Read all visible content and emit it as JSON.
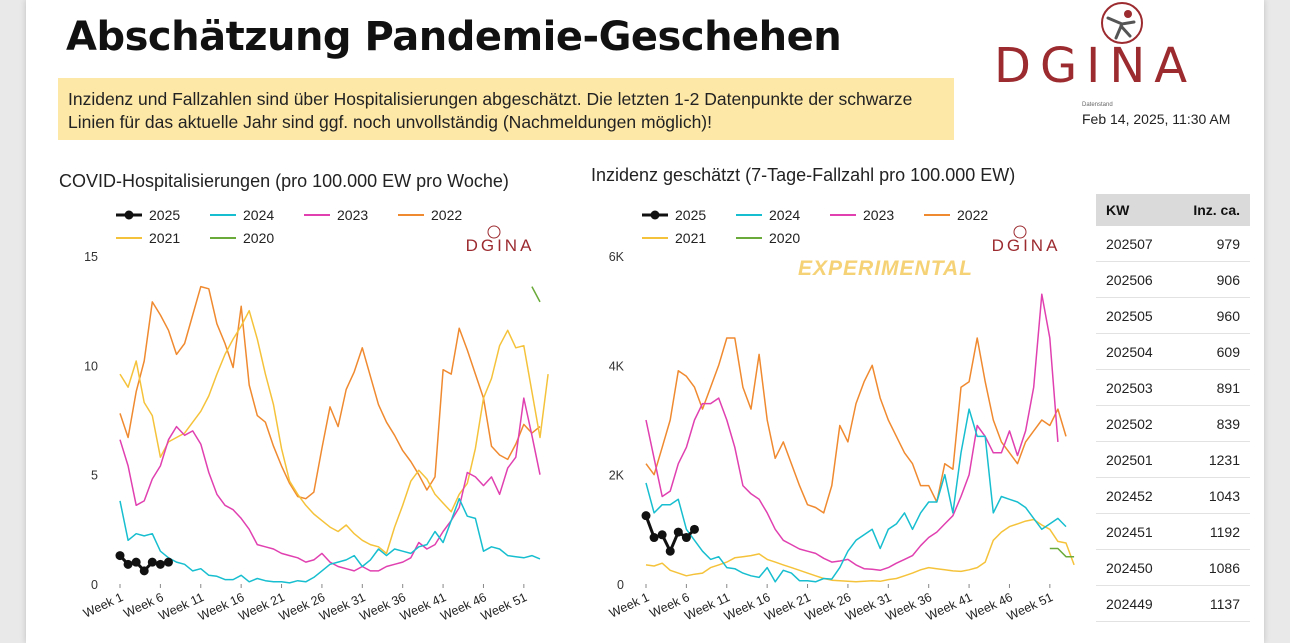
{
  "page": {
    "title": "Abschätzung Pandemie-Geschehen",
    "notice": "Inzidenz und Fallzahlen sind über Hospitalisierungen abgeschätzt. Die letzten 1-2 Datenpunkte der schwarze Linien für das aktuelle Jahr sind ggf. noch unvollständig (Nachmeldungen möglich)!",
    "logo_text": "DGINA",
    "datestand_label": "Datenstand",
    "datestand": "Feb 14, 2025, 11:30 AM"
  },
  "colors": {
    "2025": "#111111",
    "2024": "#17becf",
    "2023": "#e040b0",
    "2022": "#f08a30",
    "2021": "#f5c33b",
    "2020": "#6aaa3a",
    "brand": "#9c2b30"
  },
  "chart_data": [
    {
      "type": "line",
      "title": "COVID-Hospitalisierungen (pro 100.000 EW pro Woche)",
      "watermark": "DGINA",
      "experimental_label": "",
      "y_ticks": [
        0,
        5,
        10,
        15
      ],
      "y_tick_labels": [
        "0",
        "5",
        "10",
        "15"
      ],
      "ylim": [
        0,
        15
      ],
      "x_ticks": [
        1,
        6,
        11,
        16,
        21,
        26,
        31,
        36,
        41,
        46,
        51
      ],
      "x_tick_labels": [
        "Week 1",
        "Week 6",
        "Week 11",
        "Week 16",
        "Week 21",
        "Week 26",
        "Week 31",
        "Week 36",
        "Week 41",
        "Week 46",
        "Week 51"
      ],
      "xlim": [
        1,
        53
      ],
      "series": [
        {
          "name": "2022",
          "start_week": 1,
          "values": [
            7.8,
            6.7,
            8.8,
            10.2,
            12.9,
            12.3,
            11.6,
            10.5,
            11,
            12.3,
            13.6,
            13.5,
            11.9,
            11,
            9.9,
            12.7,
            9.1,
            7.7,
            7.4,
            6.3,
            5.4,
            4.6,
            4,
            3.9,
            4.2,
            6.2,
            8.1,
            7.2,
            8.9,
            9.7,
            10.8,
            9.5,
            8.2,
            7.4,
            6.8,
            6.1,
            5.6,
            5,
            4.3,
            4.9,
            9.8,
            9.6,
            11.7,
            10.7,
            9.6,
            8.5,
            6.3,
            5.9,
            5.7,
            6.4,
            7.3,
            6.9,
            7.2
          ]
        },
        {
          "name": "2021",
          "start_week": 1,
          "values": [
            9.6,
            9,
            10.2,
            8.3,
            7.7,
            5.8,
            6.5,
            6.7,
            6.9,
            7.4,
            7.9,
            8.6,
            9.6,
            10.5,
            11.2,
            11.8,
            12.5,
            11.2,
            9.6,
            8.2,
            6.2,
            4.7,
            4.1,
            3.6,
            3.2,
            2.9,
            2.6,
            2.4,
            2.7,
            2.3,
            2,
            1.8,
            1.7,
            1.4,
            2.6,
            3.6,
            4.7,
            5.2,
            4.8,
            4.1,
            3.7,
            3.3,
            4.1,
            4.6,
            6.2,
            8.5,
            9.4,
            10.9,
            11.6,
            10.8,
            10.9,
            8.8,
            6.7,
            9.6
          ]
        },
        {
          "name": "2023",
          "start_week": 1,
          "values": [
            6.6,
            5.4,
            3.6,
            3.8,
            4.8,
            5.4,
            6.6,
            7.2,
            6.8,
            7,
            6.4,
            5.1,
            4.1,
            3.6,
            3.4,
            3,
            2.5,
            1.8,
            1.7,
            1.6,
            1.4,
            1.3,
            1.2,
            1,
            1.1,
            1.4,
            1,
            0.8,
            0.7,
            0.6,
            0.8,
            0.6,
            0.6,
            0.8,
            0.9,
            1,
            1.2,
            1.9,
            1.6,
            1.8,
            2.4,
            2.9,
            3.5,
            5.1,
            4.9,
            4.5,
            4.9,
            4.1,
            5.3,
            5.8,
            8.5,
            6.8,
            5
          ]
        },
        {
          "name": "2024",
          "start_week": 1,
          "values": [
            3.8,
            2,
            2.3,
            2.2,
            2.3,
            1.5,
            1.2,
            1,
            0.9,
            0.6,
            0.7,
            0.4,
            0.35,
            0.2,
            0.2,
            0.4,
            0.1,
            0.25,
            0.15,
            0.1,
            0.1,
            0.05,
            0.15,
            0.1,
            0.3,
            0.6,
            0.9,
            1,
            1.1,
            1.3,
            0.8,
            1.1,
            1.6,
            1.3,
            1.6,
            1.5,
            1.4,
            1.7,
            1.8,
            2.4,
            1.9,
            2.9,
            3.9,
            3.1,
            3,
            1.5,
            1.7,
            1.6,
            1.3,
            1.25,
            1.2,
            1.3,
            1.15
          ]
        },
        {
          "name": "2020",
          "start_week": 52,
          "values": [
            13.6,
            12.9
          ]
        },
        {
          "name": "2025",
          "start_week": 1,
          "values": [
            1.3,
            0.9,
            1,
            0.6,
            1,
            0.9,
            1
          ]
        }
      ]
    },
    {
      "type": "line",
      "title": "Inzidenz geschätzt (7-Tage-Fallzahl pro 100.000 EW)",
      "watermark": "DGINA",
      "experimental_label": "EXPERIMENTAL",
      "y_ticks": [
        0,
        2000,
        4000,
        6000
      ],
      "y_tick_labels": [
        "0",
        "2K",
        "4K",
        "6K"
      ],
      "ylim": [
        0,
        6000
      ],
      "x_ticks": [
        1,
        6,
        11,
        16,
        21,
        26,
        31,
        36,
        41,
        46,
        51
      ],
      "x_tick_labels": [
        "Week 1",
        "Week 6",
        "Week 11",
        "Week 16",
        "Week 21",
        "Week 26",
        "Week 31",
        "Week 36",
        "Week 41",
        "Week 46",
        "Week 51"
      ],
      "xlim": [
        1,
        53
      ],
      "series": [
        {
          "name": "2022",
          "start_week": 1,
          "values": [
            2200,
            2000,
            2500,
            3000,
            3900,
            3800,
            3600,
            3200,
            3600,
            4000,
            4500,
            4500,
            3600,
            3200,
            4200,
            3000,
            2300,
            2600,
            2200,
            1800,
            1450,
            1400,
            1300,
            1800,
            2900,
            2600,
            3300,
            3700,
            4000,
            3400,
            3000,
            2700,
            2400,
            2200,
            1800,
            1800,
            1500,
            2200,
            2100,
            3600,
            3700,
            4500,
            3700,
            3000,
            2600,
            2400,
            2200,
            2600,
            2800,
            3000,
            2900,
            3200,
            2700
          ]
        },
        {
          "name": "2021",
          "start_week": 1,
          "values": [
            350,
            330,
            380,
            250,
            200,
            150,
            180,
            200,
            300,
            350,
            400,
            480,
            500,
            520,
            550,
            450,
            400,
            350,
            300,
            250,
            200,
            150,
            100,
            70,
            60,
            50,
            40,
            50,
            60,
            50,
            80,
            100,
            150,
            200,
            260,
            300,
            280,
            260,
            240,
            230,
            260,
            300,
            400,
            800,
            950,
            1050,
            1100,
            1150,
            1180,
            1080,
            1000,
            780,
            750,
            350
          ]
        },
        {
          "name": "2023",
          "start_week": 1,
          "values": [
            3000,
            2300,
            1600,
            1700,
            2200,
            2500,
            3000,
            3300,
            3300,
            3400,
            3000,
            2500,
            1800,
            1650,
            1550,
            1300,
            1000,
            800,
            720,
            640,
            600,
            560,
            470,
            400,
            420,
            450,
            350,
            280,
            270,
            250,
            300,
            380,
            450,
            520,
            700,
            850,
            950,
            1100,
            1250,
            1600,
            2000,
            2900,
            2700,
            2400,
            2400,
            2800,
            2350,
            2800,
            3600,
            5300,
            4500,
            2600
          ]
        },
        {
          "name": "2024",
          "start_week": 1,
          "values": [
            1850,
            1300,
            1450,
            1450,
            1550,
            1000,
            800,
            600,
            450,
            500,
            300,
            280,
            200,
            150,
            120,
            300,
            40,
            250,
            200,
            60,
            60,
            40,
            100,
            90,
            300,
            600,
            800,
            900,
            1000,
            650,
            1000,
            1100,
            1300,
            1000,
            1300,
            1500,
            1500,
            2000,
            1300,
            2400,
            3200,
            2700,
            2700,
            1300,
            1600,
            1550,
            1500,
            1400,
            1200,
            1000,
            1100,
            1200,
            1050
          ]
        },
        {
          "name": "2020",
          "start_week": 51,
          "values": [
            650,
            650,
            500,
            500
          ]
        },
        {
          "name": "2025",
          "start_week": 1,
          "values": [
            1250,
            850,
            900,
            600,
            950,
            850,
            1000
          ]
        }
      ]
    }
  ],
  "table": {
    "headers": [
      "KW",
      "Inz. ca."
    ],
    "rows": [
      [
        "202507",
        "979"
      ],
      [
        "202506",
        "906"
      ],
      [
        "202505",
        "960"
      ],
      [
        "202504",
        "609"
      ],
      [
        "202503",
        "891"
      ],
      [
        "202502",
        "839"
      ],
      [
        "202501",
        "1231"
      ],
      [
        "202452",
        "1043"
      ],
      [
        "202451",
        "1192"
      ],
      [
        "202450",
        "1086"
      ],
      [
        "202449",
        "1137"
      ]
    ]
  }
}
